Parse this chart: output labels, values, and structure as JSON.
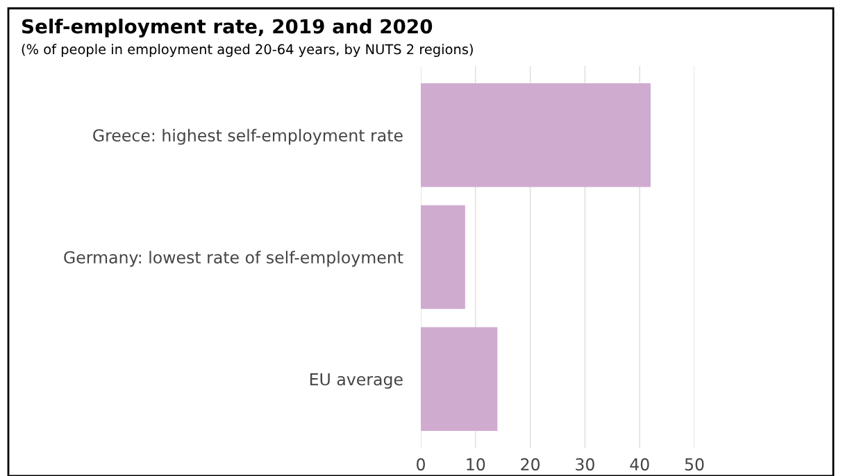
{
  "chart_data": {
    "type": "bar",
    "orientation": "horizontal",
    "title": "Self-employment rate, 2019 and 2020",
    "subtitle": "(% of people in employment aged 20-64 years, by NUTS 2 regions)",
    "categories": [
      "Greece: highest self-employment rate",
      "Germany: lowest rate of self-employment",
      "EU average"
    ],
    "values": [
      42,
      8.1,
      14
    ],
    "color": "#d0abd0",
    "xlim": [
      0,
      50
    ],
    "xticks": [
      0,
      10,
      20,
      30,
      40,
      50
    ],
    "grid": "x"
  }
}
